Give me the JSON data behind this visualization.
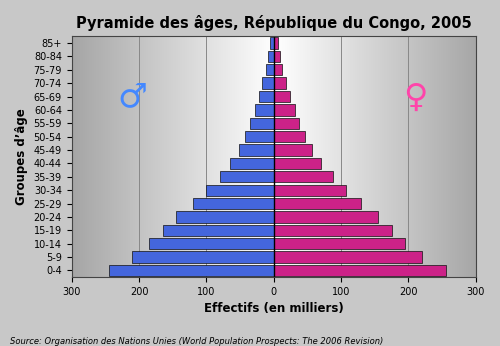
{
  "title": "Pyramide des âges, République du Congo, 2005",
  "xlabel": "Effectifs (en milliers)",
  "ylabel": "Groupes d’âge",
  "source": "Source: Organisation des Nations Unies (World Population Prospects: The 2006 Revision)",
  "age_groups": [
    "0-4",
    "5-9",
    "10-14",
    "15-19",
    "20-24",
    "25-29",
    "30-34",
    "35-39",
    "40-44",
    "45-49",
    "50-54",
    "55-59",
    "60-64",
    "65-69",
    "70-74",
    "75-79",
    "80-84",
    "85+"
  ],
  "male": [
    245,
    210,
    185,
    165,
    145,
    120,
    100,
    80,
    65,
    52,
    43,
    35,
    28,
    22,
    17,
    12,
    8,
    5
  ],
  "female": [
    255,
    220,
    195,
    175,
    155,
    130,
    108,
    88,
    70,
    57,
    47,
    38,
    31,
    24,
    18,
    13,
    9,
    6
  ],
  "male_color": "#4466DD",
  "female_color": "#CC2288",
  "male_edge_color": "#111111",
  "female_edge_color": "#111111",
  "xlim": 300,
  "bg_color": "#C8C8C8",
  "grid_color": "#888888",
  "title_fontsize": 10.5,
  "label_fontsize": 8.5,
  "tick_fontsize": 7,
  "source_fontsize": 6,
  "male_symbol": "♂",
  "female_symbol": "♀",
  "symbol_color_male": "#4488FF",
  "symbol_color_female": "#FF44AA",
  "xticks": [
    -300,
    -200,
    -100,
    0,
    100,
    200,
    300
  ]
}
